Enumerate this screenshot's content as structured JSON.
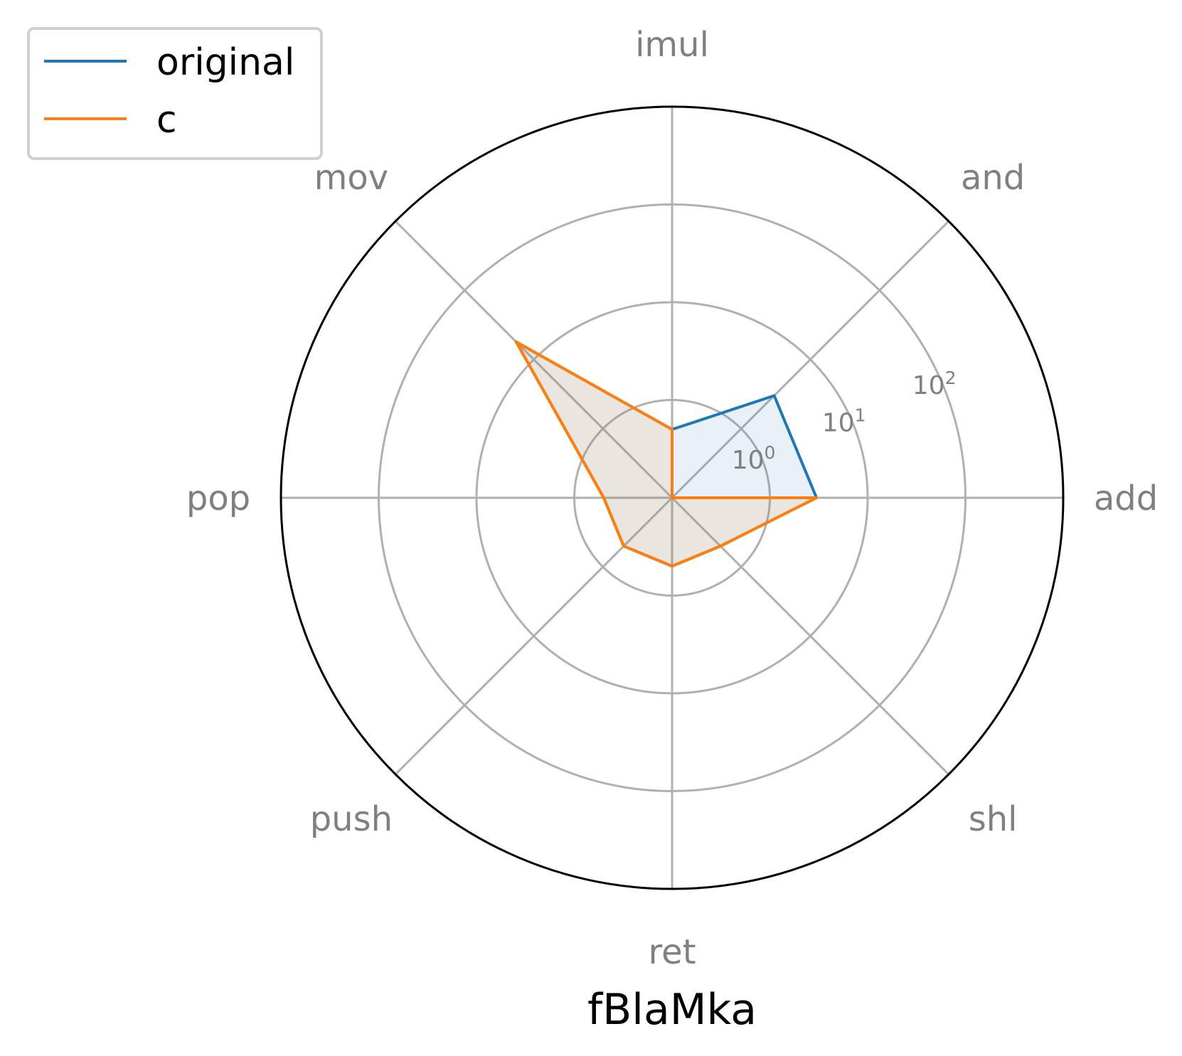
{
  "chart_data": {
    "type": "radar",
    "title": "fBlaMka",
    "categories": [
      "add",
      "and",
      "imul",
      "mov",
      "pop",
      "push",
      "ret",
      "shl"
    ],
    "radial_scale": "log",
    "radial_ticks": [
      {
        "value": 1,
        "base": "10",
        "exp": "0"
      },
      {
        "value": 10,
        "base": "10",
        "exp": "1"
      },
      {
        "value": 100,
        "base": "10",
        "exp": "2"
      }
    ],
    "rlim": [
      0.1,
      1000
    ],
    "grid": true,
    "legend_placement": "top-left",
    "series": [
      {
        "name": "original",
        "color": "#1f77b4",
        "values": [
          3,
          3,
          0.5,
          18,
          0.5,
          0.5,
          0.5,
          0.5
        ]
      },
      {
        "name": "c",
        "color": "#ff7f0e",
        "values": [
          3,
          0.1,
          0.5,
          18,
          0.5,
          0.5,
          0.5,
          0.5
        ]
      }
    ]
  }
}
